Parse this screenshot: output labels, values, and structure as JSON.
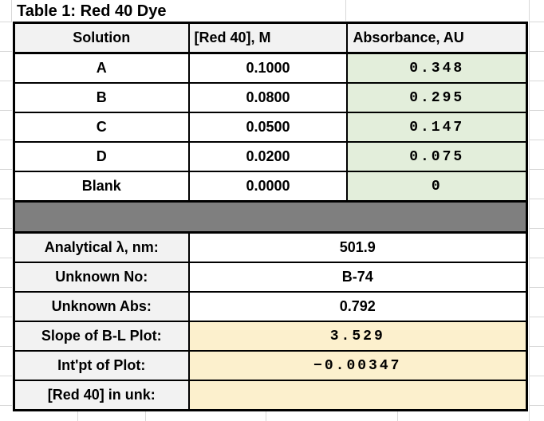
{
  "sheet": {
    "title": "Table 1: Red 40 Dye"
  },
  "data_table": {
    "headers": {
      "solution": "Solution",
      "concentration": "[Red 40], M",
      "absorbance": "Absorbance, AU"
    },
    "rows": [
      {
        "solution": "A",
        "concentration": "0.1000",
        "absorbance": "0.348"
      },
      {
        "solution": "B",
        "concentration": "0.0800",
        "absorbance": "0.295"
      },
      {
        "solution": "C",
        "concentration": "0.0500",
        "absorbance": "0.147"
      },
      {
        "solution": "D",
        "concentration": "0.0200",
        "absorbance": "0.075"
      },
      {
        "solution": "Blank",
        "concentration": "0.0000",
        "absorbance": "0"
      }
    ]
  },
  "summary_table": {
    "rows": [
      {
        "label": "Analytical λ, nm:",
        "value": "501.9",
        "style": "plain"
      },
      {
        "label": "Unknown No:",
        "value": "B-74",
        "style": "plain"
      },
      {
        "label": "Unknown Abs:",
        "value": "0.792",
        "style": "plain"
      },
      {
        "label": "Slope of B-L Plot:",
        "value": "3.529",
        "style": "calc"
      },
      {
        "label": "Int'pt of Plot:",
        "value": "−0.00347",
        "style": "calc"
      },
      {
        "label": "[Red 40] in unk:",
        "value": "",
        "style": "calc"
      }
    ]
  },
  "colors": {
    "absorbance_fill": "#E3EEDB",
    "calc_fill": "#FCF0CD",
    "header_fill": "#F2F2F2",
    "separator_fill": "#7F7F7F",
    "gridline": "#D8D8D8",
    "border": "#000000",
    "text": "#000000"
  }
}
